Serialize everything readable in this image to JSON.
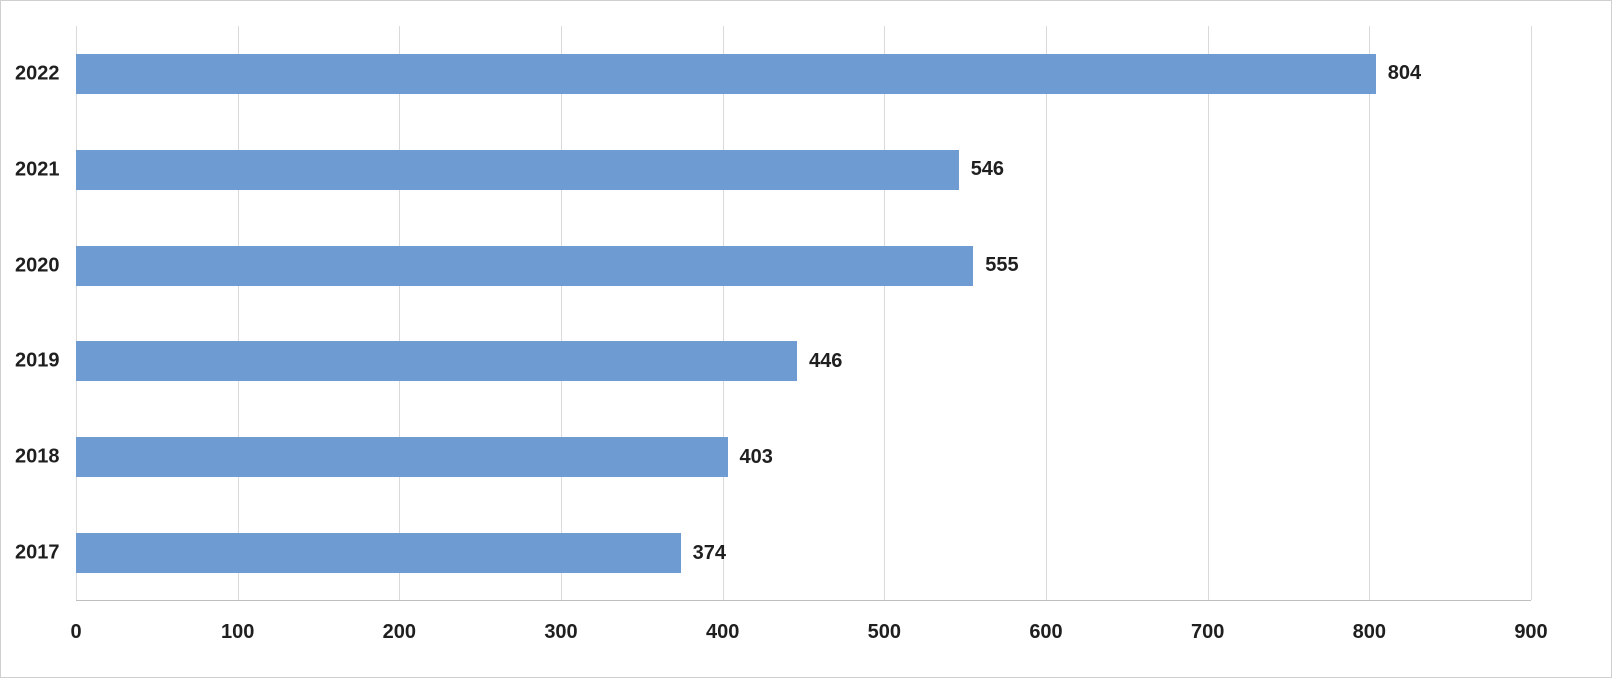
{
  "chart_data": {
    "type": "bar",
    "orientation": "horizontal",
    "title": "",
    "xlabel": "",
    "ylabel": "",
    "categories": [
      "2022",
      "2021",
      "2020",
      "2019",
      "2018",
      "2017"
    ],
    "values": [
      804,
      546,
      555,
      446,
      403,
      374
    ],
    "xlim": [
      0,
      900
    ],
    "x_ticks": [
      0,
      100,
      200,
      300,
      400,
      500,
      600,
      700,
      800,
      900
    ],
    "grid": true,
    "legend": false,
    "bar_color": "#6E9CD2",
    "grid_color": "#D9D9D9",
    "axis_color": "#BFBFBF",
    "label_color": "#1F1F1F"
  }
}
